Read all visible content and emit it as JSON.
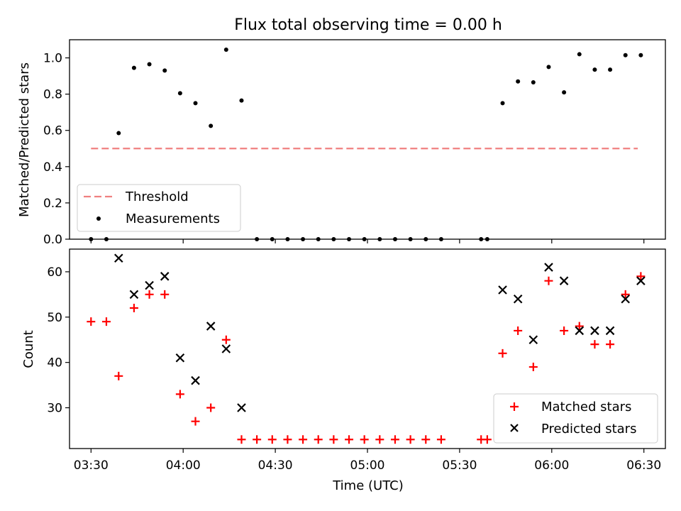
{
  "chart_data": [
    {
      "type": "scatter",
      "title": "Flux total observing time = 0.00 h",
      "xlabel": "",
      "ylabel": "Matched/Predicted stars",
      "xlim": [
        "03:23",
        "06:37"
      ],
      "ylim": [
        0,
        1.1
      ],
      "yticks": [
        "0.0",
        "0.2",
        "0.4",
        "0.6",
        "0.8",
        "1.0"
      ],
      "grid": false,
      "legend_position": "lower-left",
      "threshold": {
        "name": "Threshold",
        "value": 0.5,
        "x_start": "03:30",
        "x_end": "06:28",
        "color": "#f08080"
      },
      "series": [
        {
          "name": "Measurements",
          "marker": "dot",
          "color": "#000000",
          "points": [
            [
              "03:30",
              0.0
            ],
            [
              "03:35",
              0.0
            ],
            [
              "03:39",
              0.585
            ],
            [
              "03:44",
              0.945
            ],
            [
              "03:49",
              0.965
            ],
            [
              "03:54",
              0.93
            ],
            [
              "03:59",
              0.805
            ],
            [
              "04:04",
              0.75
            ],
            [
              "04:09",
              0.625
            ],
            [
              "04:14",
              1.045
            ],
            [
              "04:19",
              0.765
            ],
            [
              "04:24",
              0.0
            ],
            [
              "04:29",
              0.0
            ],
            [
              "04:34",
              0.0
            ],
            [
              "04:39",
              0.0
            ],
            [
              "04:44",
              0.0
            ],
            [
              "04:49",
              0.0
            ],
            [
              "04:54",
              0.0
            ],
            [
              "04:59",
              0.0
            ],
            [
              "05:04",
              0.0
            ],
            [
              "05:09",
              0.0
            ],
            [
              "05:14",
              0.0
            ],
            [
              "05:19",
              0.0
            ],
            [
              "05:24",
              0.0
            ],
            [
              "05:37",
              0.0
            ],
            [
              "05:39",
              0.0
            ],
            [
              "05:44",
              0.75
            ],
            [
              "05:49",
              0.87
            ],
            [
              "05:54",
              0.865
            ],
            [
              "05:59",
              0.95
            ],
            [
              "06:04",
              0.81
            ],
            [
              "06:09",
              1.02
            ],
            [
              "06:14",
              0.935
            ],
            [
              "06:19",
              0.935
            ],
            [
              "06:24",
              1.015
            ],
            [
              "06:29",
              1.015
            ]
          ]
        }
      ]
    },
    {
      "type": "scatter",
      "title": "",
      "xlabel": "Time (UTC)",
      "ylabel": "Count",
      "xlim": [
        "03:23",
        "06:37"
      ],
      "ylim": [
        21,
        65
      ],
      "yticks": [
        "30",
        "40",
        "50",
        "60"
      ],
      "xticks": [
        "03:30",
        "04:00",
        "04:30",
        "05:00",
        "05:30",
        "06:00",
        "06:30"
      ],
      "grid": false,
      "legend_position": "lower-right",
      "series": [
        {
          "name": "Matched stars",
          "marker": "plus",
          "color": "#ff0000",
          "points": [
            [
              "03:30",
              49
            ],
            [
              "03:35",
              49
            ],
            [
              "03:39",
              37
            ],
            [
              "03:44",
              52
            ],
            [
              "03:49",
              55
            ],
            [
              "03:54",
              55
            ],
            [
              "03:59",
              33
            ],
            [
              "04:04",
              27
            ],
            [
              "04:09",
              30
            ],
            [
              "04:14",
              45
            ],
            [
              "04:19",
              23
            ],
            [
              "04:24",
              23
            ],
            [
              "04:29",
              23
            ],
            [
              "04:34",
              23
            ],
            [
              "04:39",
              23
            ],
            [
              "04:44",
              23
            ],
            [
              "04:49",
              23
            ],
            [
              "04:54",
              23
            ],
            [
              "04:59",
              23
            ],
            [
              "05:04",
              23
            ],
            [
              "05:09",
              23
            ],
            [
              "05:14",
              23
            ],
            [
              "05:19",
              23
            ],
            [
              "05:24",
              23
            ],
            [
              "05:37",
              23
            ],
            [
              "05:39",
              23
            ],
            [
              "05:44",
              42
            ],
            [
              "05:49",
              47
            ],
            [
              "05:54",
              39
            ],
            [
              "05:59",
              58
            ],
            [
              "06:04",
              47
            ],
            [
              "06:09",
              48
            ],
            [
              "06:14",
              44
            ],
            [
              "06:19",
              44
            ],
            [
              "06:24",
              55
            ],
            [
              "06:29",
              59
            ]
          ]
        },
        {
          "name": "Predicted stars",
          "marker": "x",
          "color": "#000000",
          "points": [
            [
              "03:39",
              63
            ],
            [
              "03:44",
              55
            ],
            [
              "03:49",
              57
            ],
            [
              "03:54",
              59
            ],
            [
              "03:59",
              41
            ],
            [
              "04:04",
              36
            ],
            [
              "04:09",
              48
            ],
            [
              "04:14",
              43
            ],
            [
              "04:19",
              30
            ],
            [
              "05:44",
              56
            ],
            [
              "05:49",
              54
            ],
            [
              "05:54",
              45
            ],
            [
              "05:59",
              61
            ],
            [
              "06:04",
              58
            ],
            [
              "06:09",
              47
            ],
            [
              "06:14",
              47
            ],
            [
              "06:19",
              47
            ],
            [
              "06:24",
              54
            ],
            [
              "06:29",
              58
            ]
          ]
        }
      ]
    }
  ]
}
